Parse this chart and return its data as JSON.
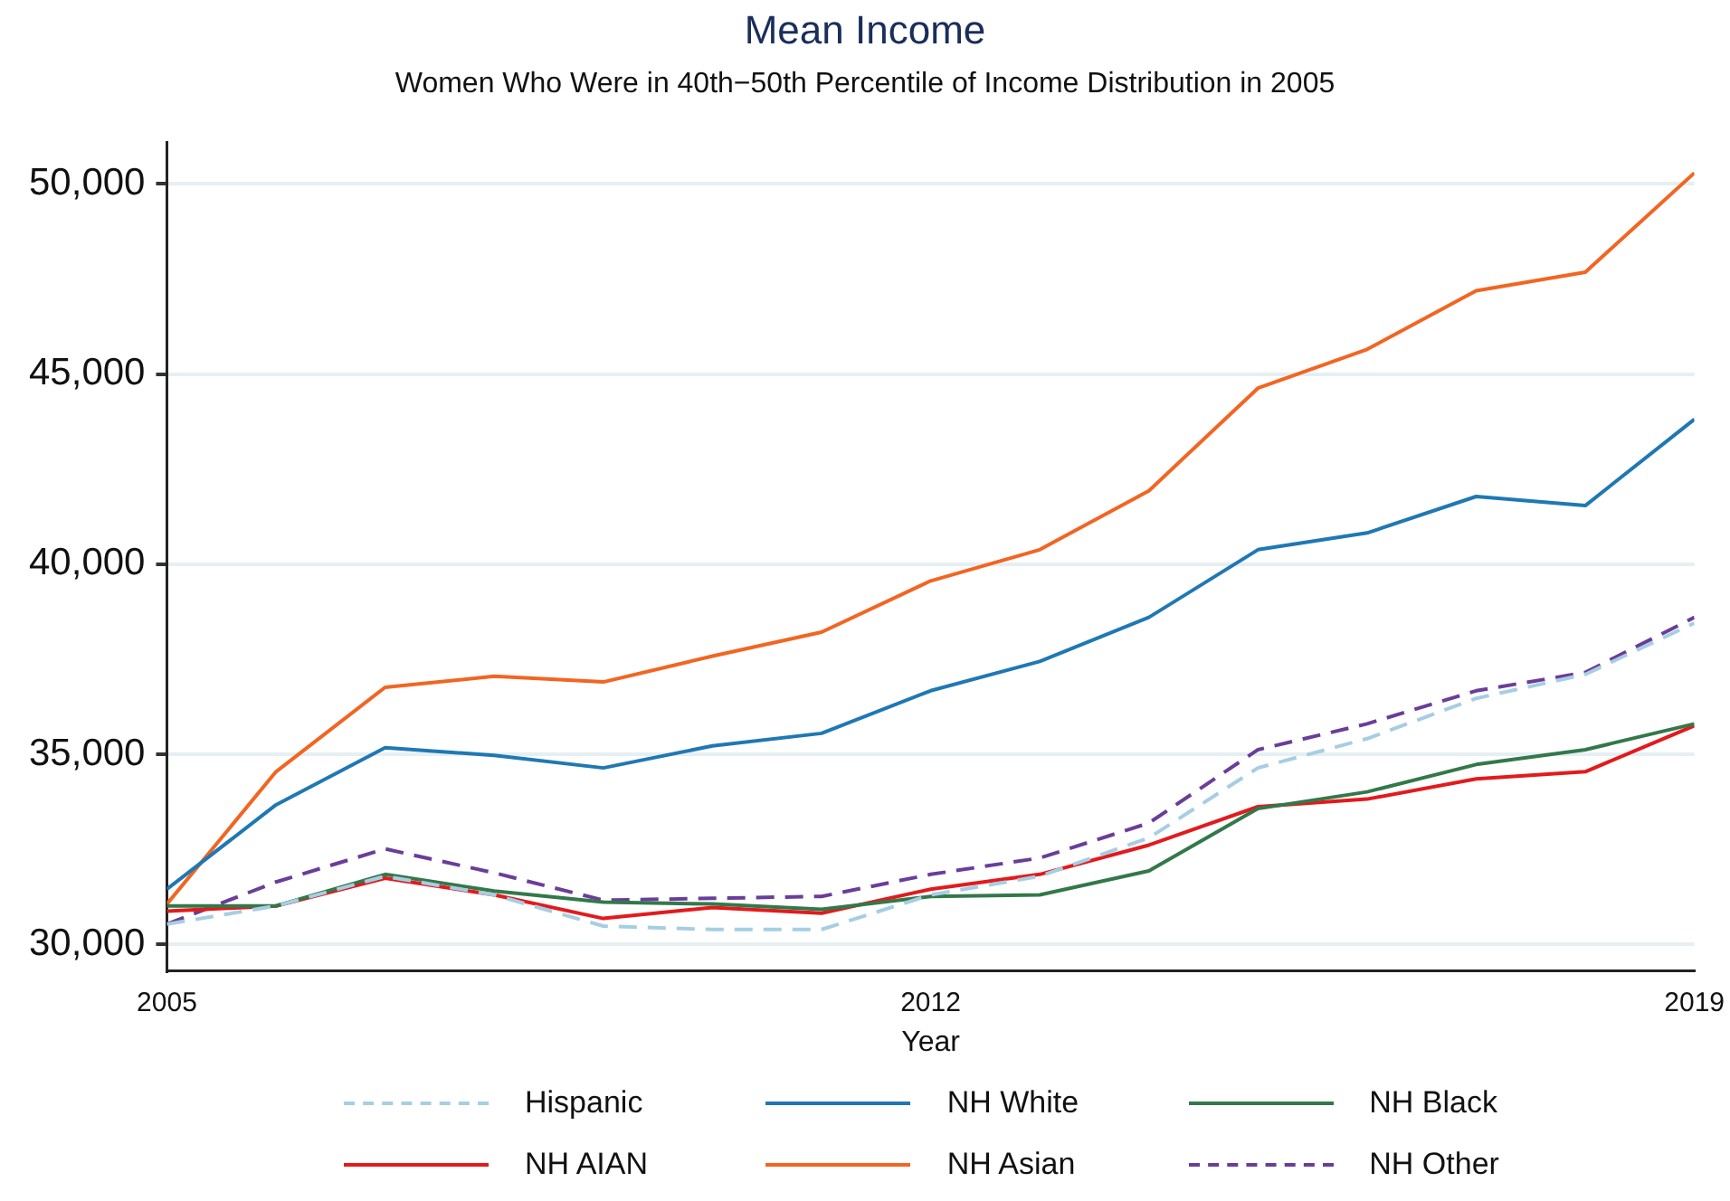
{
  "chart_data": {
    "type": "line",
    "title": "Mean Income",
    "subtitle": "Women Who Were in 40th−50th Percentile of Income Distribution in 2005",
    "xlabel": "Year",
    "x": [
      2005,
      2006,
      2007,
      2008,
      2009,
      2010,
      2011,
      2012,
      2013,
      2014,
      2015,
      2016,
      2017,
      2018,
      2019
    ],
    "xlim": [
      2005,
      2019
    ],
    "xticks": [
      2005,
      2012,
      2019
    ],
    "ylim": [
      29300,
      51100
    ],
    "yticks": [
      {
        "value": 30000,
        "label": "30,000"
      },
      {
        "value": 35000,
        "label": "35,000"
      },
      {
        "value": 40000,
        "label": "40,000"
      },
      {
        "value": 45000,
        "label": "45,000"
      },
      {
        "value": 50000,
        "label": "50,000"
      }
    ],
    "grid": "y",
    "legend": "bottom",
    "marker": "none",
    "series": [
      {
        "name": "Hispanic",
        "color": "#a6cee3",
        "line_style": "dashed",
        "values": [
          30530,
          31010,
          31790,
          31300,
          30480,
          30390,
          30390,
          31300,
          31790,
          32800,
          34640,
          35410,
          36470,
          37100,
          38450
        ]
      },
      {
        "name": "NH White",
        "color": "#1f78b4",
        "line_style": "solid",
        "values": [
          31450,
          33670,
          35170,
          34970,
          34640,
          35220,
          35550,
          36670,
          37440,
          38600,
          40380,
          40820,
          41780,
          41540,
          43810
        ]
      },
      {
        "name": "NH Black",
        "color": "#33784a",
        "line_style": "solid",
        "values": [
          31010,
          31010,
          31840,
          31400,
          31110,
          31060,
          30920,
          31260,
          31300,
          31930,
          33570,
          34010,
          34730,
          35120,
          35800
        ]
      },
      {
        "name": "NH AIAN",
        "color": "#e31a1c",
        "line_style": "solid",
        "values": [
          30870,
          31010,
          31740,
          31300,
          30680,
          30970,
          30820,
          31450,
          31840,
          32610,
          33620,
          33820,
          34350,
          34540,
          35750
        ]
      },
      {
        "name": "NH Asian",
        "color": "#f26522",
        "line_style": "solid",
        "values": [
          31060,
          34540,
          36760,
          37050,
          36900,
          37580,
          38210,
          39560,
          40380,
          41930,
          44630,
          45650,
          47190,
          47680,
          50290
        ]
      },
      {
        "name": "NH Other",
        "color": "#6a3d9a",
        "line_style": "dashed",
        "values": [
          30530,
          31640,
          32510,
          31880,
          31160,
          31210,
          31260,
          31840,
          32270,
          33190,
          35120,
          35800,
          36670,
          37150,
          38600
        ]
      }
    ]
  }
}
